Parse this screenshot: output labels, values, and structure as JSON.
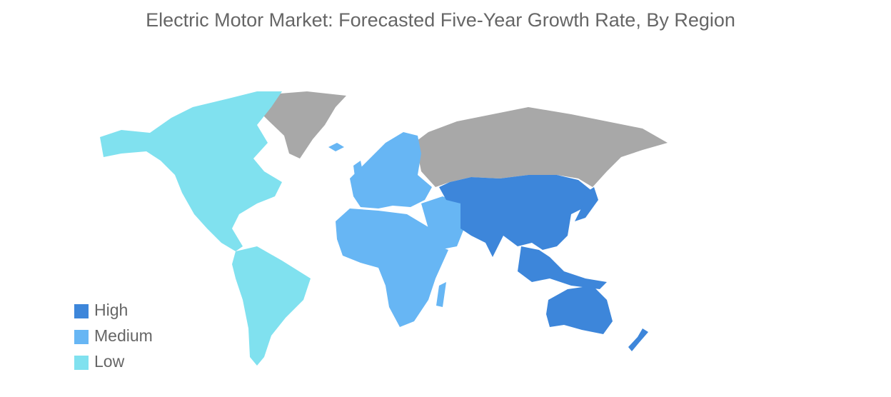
{
  "chart_data": {
    "type": "choropleth",
    "title": "Electric Motor Market: Forecasted Five-Year Growth Rate, By Region",
    "legend": [
      {
        "label": "High",
        "color": "#3d86da"
      },
      {
        "label": "Medium",
        "color": "#67b6f4"
      },
      {
        "label": "Low",
        "color": "#80e1ef"
      }
    ]
  }
}
